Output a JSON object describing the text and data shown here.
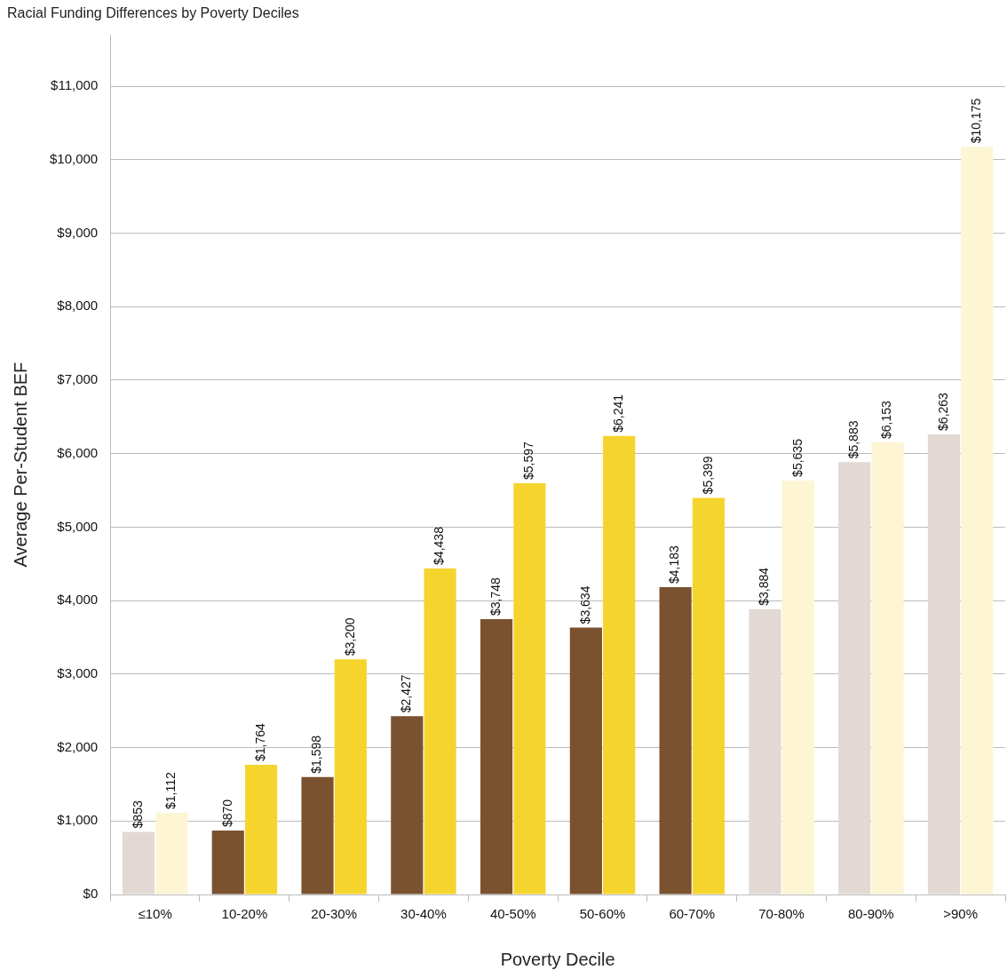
{
  "chart_data": {
    "type": "bar",
    "title": "Racial Funding Differences by Poverty Deciles",
    "xlabel": "Poverty Decile",
    "ylabel": "Average Per-Student BEF",
    "categories": [
      "≤10%",
      "10-20%",
      "20-30%",
      "30-40%",
      "40-50%",
      "50-60%",
      "60-70%",
      "70-80%",
      "80-90%",
      ">90%"
    ],
    "series": [
      {
        "values": [
          853,
          870,
          1598,
          2427,
          3748,
          3634,
          4183,
          3884,
          5883,
          6263
        ],
        "colors": [
          "#e2d9d4",
          "#7a5230",
          "#7a5230",
          "#7a5230",
          "#7a5230",
          "#7a5230",
          "#7a5230",
          "#e2d9d4",
          "#e2d9d4",
          "#e2d9d4"
        ]
      },
      {
        "values": [
          1112,
          1764,
          3200,
          4438,
          5597,
          6241,
          5399,
          5635,
          6153,
          10175
        ],
        "colors": [
          "#fdf5d3",
          "#f5d42e",
          "#f5d42e",
          "#f5d42e",
          "#f5d42e",
          "#f5d42e",
          "#f5d42e",
          "#fdf5d3",
          "#fdf5d3",
          "#fdf5d3"
        ]
      }
    ],
    "value_labels": [
      [
        "$853",
        "$870",
        "$1,598",
        "$2,427",
        "$3,748",
        "$3,634",
        "$4,183",
        "$3,884",
        "$5,883",
        "$6,263"
      ],
      [
        "$1,112",
        "$1,764",
        "$3,200",
        "$4,438",
        "$5,597",
        "$6,241",
        "$5,399",
        "$5,635",
        "$6,153",
        "$10,175"
      ]
    ],
    "ylim": [
      0,
      11700
    ],
    "yticks": [
      {
        "value": 0,
        "label": "$0"
      },
      {
        "value": 1000,
        "label": "$1,000"
      },
      {
        "value": 2000,
        "label": "$2,000"
      },
      {
        "value": 3000,
        "label": "$3,000"
      },
      {
        "value": 4000,
        "label": "$4,000"
      },
      {
        "value": 5000,
        "label": "$5,000"
      },
      {
        "value": 6000,
        "label": "$6,000"
      },
      {
        "value": 7000,
        "label": "$7,000"
      },
      {
        "value": 8000,
        "label": "$8,000"
      },
      {
        "value": 9000,
        "label": "$9,000"
      },
      {
        "value": 10000,
        "label": "$10,000"
      },
      {
        "value": 11000,
        "label": "$11,000"
      }
    ],
    "grid": "y",
    "legend": false
  }
}
